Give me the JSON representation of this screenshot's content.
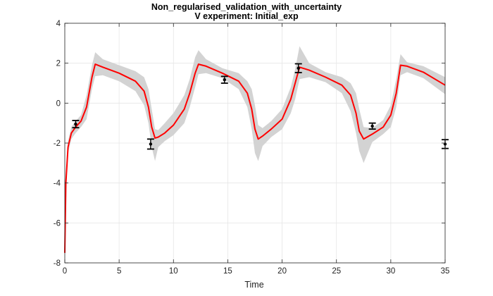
{
  "chart_data": {
    "type": "line",
    "title": "Non_regularised_validation_with_uncertainty",
    "subtitle": "V experiment: Initial_exp",
    "xlabel": "Time",
    "ylabel": "",
    "xlim": [
      0,
      35
    ],
    "ylim": [
      -8,
      4
    ],
    "grid": true,
    "x_ticks": [
      0,
      5,
      10,
      15,
      20,
      25,
      30,
      35
    ],
    "y_ticks": [
      -8,
      -6,
      -4,
      -2,
      0,
      2,
      4
    ],
    "colors": {
      "line": "#ff0000",
      "band": "#d3d3d3",
      "data": "#000000"
    },
    "series": [
      {
        "type": "line",
        "x": [
          0,
          0.1,
          0.3,
          0.6,
          1.0,
          1.5,
          2.0,
          2.5,
          2.8,
          3.5,
          5,
          6.5,
          7.3,
          7.7,
          8.0,
          8.3,
          8.6,
          9.2,
          10.0,
          11.0,
          11.5,
          12.0,
          12.3,
          13.0,
          14.5,
          16.0,
          16.8,
          17.2,
          17.5,
          17.8,
          18.2,
          19.0,
          20.0,
          20.8,
          21.2,
          21.6,
          22.5,
          24.0,
          25.5,
          26.3,
          26.8,
          27.1,
          27.5,
          28.3,
          29.3,
          30.0,
          30.5,
          30.9,
          31.5,
          33.0,
          35.0
        ],
        "y": [
          -7.5,
          -4.0,
          -2.2,
          -1.5,
          -1.2,
          -0.9,
          -0.2,
          1.3,
          1.95,
          1.8,
          1.5,
          1.1,
          0.6,
          -0.2,
          -1.2,
          -1.75,
          -1.7,
          -1.5,
          -1.1,
          -0.3,
          0.5,
          1.5,
          1.95,
          1.85,
          1.5,
          1.1,
          0.5,
          -0.3,
          -1.3,
          -1.8,
          -1.65,
          -1.3,
          -0.8,
          0.2,
          1.0,
          1.8,
          1.65,
          1.3,
          0.9,
          0.4,
          -0.5,
          -1.4,
          -1.8,
          -1.55,
          -1.2,
          -0.6,
          0.5,
          1.9,
          1.85,
          1.55,
          0.9
        ]
      },
      {
        "type": "band",
        "x": [
          0,
          0.1,
          0.3,
          0.6,
          1.0,
          1.5,
          2.0,
          2.5,
          2.8,
          3.5,
          5,
          6.5,
          7.3,
          7.7,
          8.0,
          8.3,
          8.6,
          9.2,
          10.0,
          11.0,
          11.5,
          12.0,
          12.3,
          13.0,
          14.5,
          16.0,
          16.8,
          17.2,
          17.5,
          17.8,
          18.2,
          19.0,
          20.0,
          20.8,
          21.2,
          21.6,
          22.5,
          24.0,
          25.5,
          26.3,
          26.8,
          27.1,
          27.5,
          28.3,
          29.3,
          30.0,
          30.5,
          30.9,
          31.5,
          33.0,
          35.0
        ],
        "upper": [
          -7.3,
          -3.6,
          -1.9,
          -1.2,
          -0.9,
          -0.6,
          0.4,
          1.9,
          2.55,
          2.2,
          1.9,
          1.6,
          1.3,
          0.7,
          -0.3,
          -1.3,
          -1.35,
          -1.0,
          -0.5,
          0.4,
          1.2,
          2.3,
          2.65,
          2.2,
          1.75,
          1.5,
          1.1,
          0.7,
          -0.1,
          -1.1,
          -1.25,
          -0.9,
          -0.3,
          0.8,
          1.7,
          2.85,
          2.0,
          1.55,
          1.3,
          1.0,
          0.5,
          -0.3,
          -1.2,
          -1.25,
          -0.85,
          -0.1,
          1.2,
          2.45,
          2.05,
          1.85,
          1.3
        ],
        "lower": [
          -7.7,
          -4.4,
          -2.5,
          -1.8,
          -1.5,
          -1.2,
          -0.8,
          0.7,
          1.35,
          1.4,
          1.1,
          0.6,
          -0.1,
          -1.0,
          -2.2,
          -2.9,
          -2.2,
          -1.9,
          -1.6,
          -1.0,
          -0.2,
          0.8,
          1.45,
          1.5,
          1.25,
          0.7,
          -0.2,
          -1.3,
          -2.5,
          -2.9,
          -2.15,
          -1.7,
          -1.3,
          -0.5,
          0.2,
          1.2,
          1.3,
          1.05,
          0.5,
          -0.4,
          -1.5,
          -2.4,
          -3.0,
          -1.95,
          -1.55,
          -1.2,
          -0.2,
          1.4,
          1.55,
          1.25,
          0.45
        ]
      },
      {
        "type": "errorbar",
        "x": [
          1.0,
          7.9,
          14.7,
          21.5,
          28.3,
          35.0
        ],
        "y": [
          -1.05,
          -2.05,
          1.17,
          1.75,
          -1.15,
          -2.05
        ],
        "err": [
          0.18,
          0.25,
          0.17,
          0.22,
          0.15,
          0.22
        ]
      }
    ]
  }
}
